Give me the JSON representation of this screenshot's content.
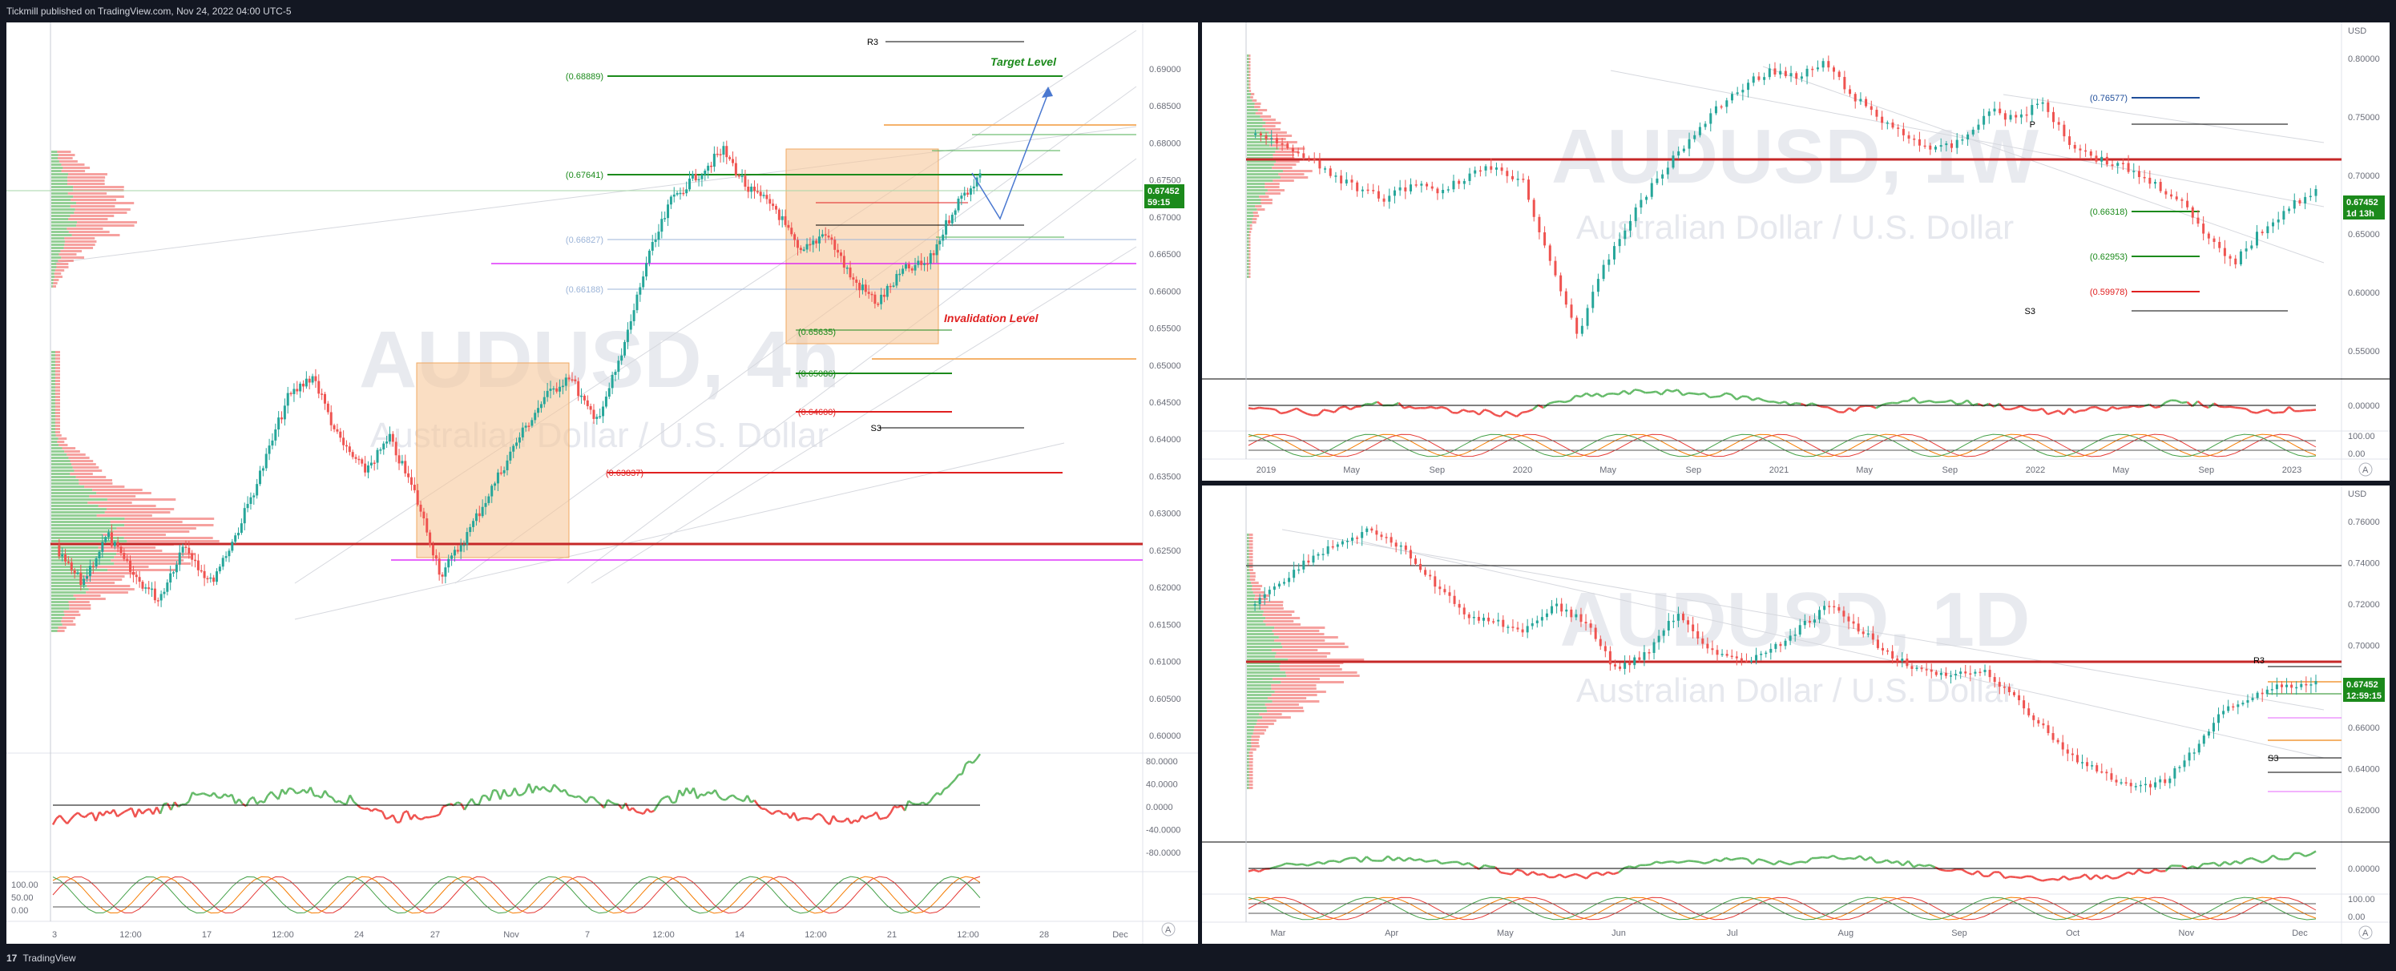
{
  "header": {
    "text": "Tickmill published on TradingView.com, Nov 24, 2022 04:00 UTC-5"
  },
  "footer": {
    "logo": "17",
    "brand": "TradingView"
  },
  "colors": {
    "bull": "#26a69a",
    "bear": "#ef5350",
    "green": "#1b8a1b",
    "red": "#e02020",
    "orange": "#f5b26b"
  },
  "panels": {
    "h4": {
      "symbol": "AUDUSD, 4h",
      "name": "Australian Dollar / U.S. Dollar",
      "price": "0.67452",
      "countdown": "59:15",
      "price_axis": [
        "0.69000",
        "0.68500",
        "0.68000",
        "0.67500",
        "0.67000",
        "0.66500",
        "0.66000",
        "0.65500",
        "0.65000",
        "0.64500",
        "0.64000",
        "0.63500",
        "0.63000",
        "0.62500",
        "0.62000",
        "0.61500",
        "0.61000",
        "0.60500",
        "0.60000"
      ],
      "osc1_axis": [
        "80.0000",
        "40.0000",
        "0.0000",
        "-40.0000",
        "-80.0000"
      ],
      "osc2_axis": [
        "100.00",
        "50.00",
        "0.00"
      ],
      "time_axis": [
        "3",
        "12:00",
        "17",
        "12:00",
        "24",
        "27",
        "Nov",
        "7",
        "12:00",
        "14",
        "12:00",
        "21",
        "12:00",
        "28",
        "Dec"
      ],
      "levels": [
        {
          "label": "R3",
          "color": "#000000"
        },
        {
          "label": "(0.68889)",
          "color": "#1b8a1b"
        },
        {
          "label": "(0.67641)",
          "color": "#1b8a1b"
        },
        {
          "label": "(0.66827)",
          "color": "#9cb4d8"
        },
        {
          "label": "(0.66188)",
          "color": "#9cb4d8"
        },
        {
          "label": "(0.65635)",
          "color": "#1b8a1b"
        },
        {
          "label": "(0.65086)",
          "color": "#1b8a1b"
        },
        {
          "label": "(0.64600)",
          "color": "#e02020"
        },
        {
          "label": "S3",
          "color": "#000000"
        },
        {
          "label": "(0.63837)",
          "color": "#e02020"
        }
      ],
      "target_label": "Target Level",
      "invalidation_label": "Invalidation Level"
    },
    "w1": {
      "symbol": "AUDUSD, 1W",
      "name": "Australian Dollar / U.S. Dollar",
      "price": "0.67452",
      "countdown": "1d 13h",
      "currency": "USD",
      "price_axis": [
        "0.80000",
        "0.75000",
        "0.70000",
        "0.65000",
        "0.60000",
        "0.55000"
      ],
      "osc1_axis": [
        "0.00000"
      ],
      "osc2_axis": [
        "100.00",
        "0.00"
      ],
      "time_axis": [
        "2019",
        "May",
        "Sep",
        "2020",
        "May",
        "Sep",
        "2021",
        "May",
        "Sep",
        "2022",
        "May",
        "Sep",
        "2023"
      ],
      "levels": [
        {
          "label": "(0.76577)",
          "color": "#1f4e9a"
        },
        {
          "label": "P",
          "color": "#000000"
        },
        {
          "label": "(0.66318)",
          "color": "#1b8a1b"
        },
        {
          "label": "(0.62953)",
          "color": "#1b8a1b"
        },
        {
          "label": "(0.59978)",
          "color": "#e02020"
        },
        {
          "label": "S3",
          "color": "#000000"
        }
      ]
    },
    "d1": {
      "symbol": "AUDUSD, 1D",
      "name": "Australian Dollar / U.S. Dollar",
      "price": "0.67452",
      "countdown": "12:59:15",
      "currency": "USD",
      "price_axis": [
        "0.76000",
        "0.74000",
        "0.72000",
        "0.70000",
        "0.68000",
        "0.66000",
        "0.64000",
        "0.62000"
      ],
      "osc1_axis": [
        "0.00000"
      ],
      "osc2_axis": [
        "100.00",
        "0.00"
      ],
      "time_axis": [
        "Mar",
        "Apr",
        "May",
        "Jun",
        "Jul",
        "Aug",
        "Sep",
        "Oct",
        "Nov",
        "Dec"
      ],
      "levels": [
        {
          "label": "R3",
          "color": "#000000"
        },
        {
          "label": "S3",
          "color": "#000000"
        }
      ]
    }
  }
}
